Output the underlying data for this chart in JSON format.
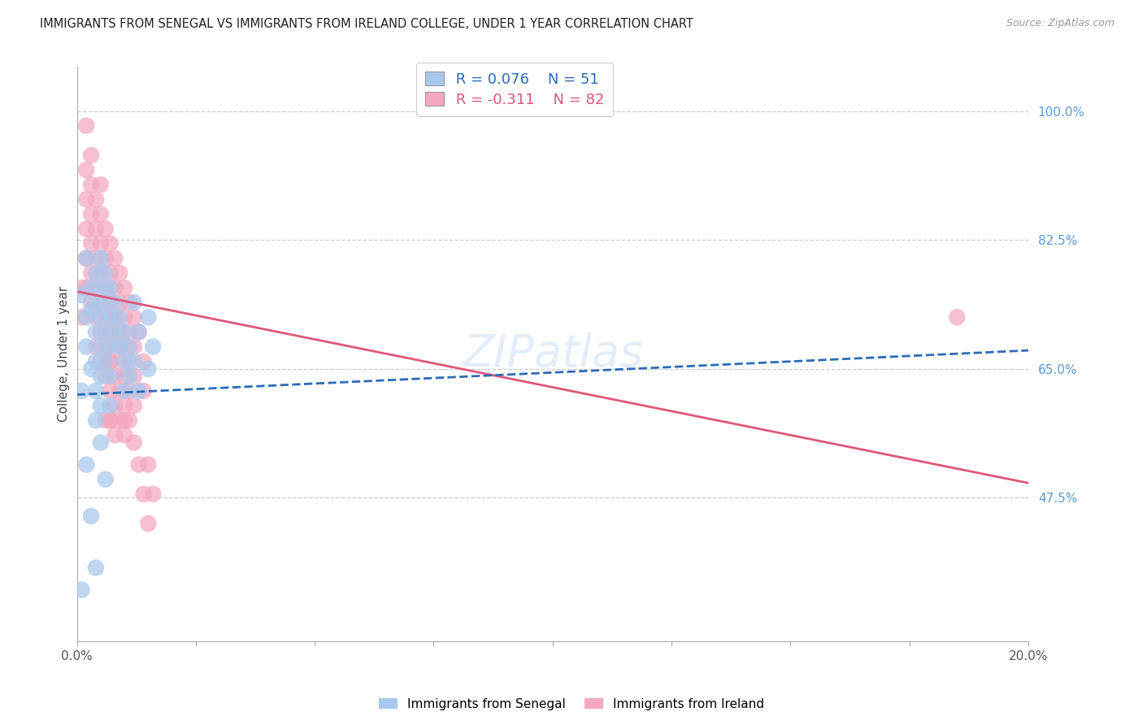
{
  "title": "IMMIGRANTS FROM SENEGAL VS IMMIGRANTS FROM IRELAND COLLEGE, UNDER 1 YEAR CORRELATION CHART",
  "source": "Source: ZipAtlas.com",
  "ylabel": "College, Under 1 year",
  "xlim": [
    0.0,
    0.2
  ],
  "ylim": [
    0.28,
    1.06
  ],
  "xticks": [
    0.0,
    0.025,
    0.05,
    0.075,
    0.1,
    0.125,
    0.15,
    0.175,
    0.2
  ],
  "yticks_right": [
    1.0,
    0.825,
    0.65,
    0.475
  ],
  "ytick_labels_right": [
    "100.0%",
    "82.5%",
    "65.0%",
    "47.5%"
  ],
  "grid_color": "#cccccc",
  "background_color": "#ffffff",
  "senegal_color": "#a8c8ed",
  "ireland_color": "#f5a8be",
  "senegal_line_color": "#2b6cb8",
  "ireland_line_color": "#e05878",
  "right_tick_color": "#5b9bd5",
  "senegal_R": "0.076",
  "senegal_N": "51",
  "ireland_R": "-0.311",
  "ireland_N": "82",
  "legend_label_senegal": "Immigrants from Senegal",
  "legend_label_ireland": "Immigrants from Ireland",
  "senegal_trend_x": [
    0.0,
    0.2
  ],
  "senegal_trend_y": [
    0.615,
    0.675
  ],
  "ireland_trend_x": [
    0.0,
    0.2
  ],
  "ireland_trend_y": [
    0.755,
    0.495
  ],
  "senegal_points_x": [
    0.001,
    0.002,
    0.002,
    0.003,
    0.003,
    0.003,
    0.004,
    0.004,
    0.004,
    0.004,
    0.005,
    0.005,
    0.005,
    0.005,
    0.005,
    0.006,
    0.006,
    0.006,
    0.007,
    0.007,
    0.007,
    0.007,
    0.008,
    0.008,
    0.009,
    0.009,
    0.01,
    0.01,
    0.01,
    0.011,
    0.011,
    0.012,
    0.012,
    0.013,
    0.013,
    0.015,
    0.015,
    0.016,
    0.002,
    0.003,
    0.004,
    0.001,
    0.002,
    0.005,
    0.001,
    0.006,
    0.004,
    0.006,
    0.005,
    0.007,
    0.004
  ],
  "senegal_points_y": [
    0.62,
    0.68,
    0.72,
    0.76,
    0.73,
    0.65,
    0.78,
    0.74,
    0.7,
    0.66,
    0.8,
    0.76,
    0.72,
    0.68,
    0.64,
    0.78,
    0.74,
    0.7,
    0.76,
    0.72,
    0.68,
    0.64,
    0.74,
    0.7,
    0.72,
    0.68,
    0.7,
    0.66,
    0.62,
    0.68,
    0.64,
    0.74,
    0.66,
    0.7,
    0.62,
    0.72,
    0.65,
    0.68,
    0.52,
    0.45,
    0.38,
    0.75,
    0.8,
    0.55,
    0.35,
    0.5,
    0.62,
    0.66,
    0.6,
    0.6,
    0.58
  ],
  "ireland_points_x": [
    0.001,
    0.001,
    0.002,
    0.002,
    0.002,
    0.002,
    0.002,
    0.003,
    0.003,
    0.003,
    0.003,
    0.003,
    0.004,
    0.004,
    0.004,
    0.004,
    0.004,
    0.004,
    0.005,
    0.005,
    0.005,
    0.005,
    0.005,
    0.006,
    0.006,
    0.006,
    0.006,
    0.006,
    0.007,
    0.007,
    0.007,
    0.007,
    0.007,
    0.007,
    0.008,
    0.008,
    0.008,
    0.008,
    0.008,
    0.009,
    0.009,
    0.009,
    0.009,
    0.01,
    0.01,
    0.01,
    0.01,
    0.011,
    0.011,
    0.011,
    0.012,
    0.012,
    0.012,
    0.012,
    0.013,
    0.013,
    0.014,
    0.014,
    0.014,
    0.015,
    0.015,
    0.016,
    0.002,
    0.003,
    0.005,
    0.006,
    0.007,
    0.008,
    0.009,
    0.01,
    0.005,
    0.007,
    0.006,
    0.008,
    0.009,
    0.01,
    0.011,
    0.012,
    0.007,
    0.185,
    0.01,
    0.011
  ],
  "ireland_points_y": [
    0.76,
    0.72,
    0.92,
    0.88,
    0.84,
    0.8,
    0.76,
    0.9,
    0.86,
    0.82,
    0.78,
    0.74,
    0.88,
    0.84,
    0.8,
    0.76,
    0.72,
    0.68,
    0.86,
    0.82,
    0.78,
    0.74,
    0.7,
    0.84,
    0.8,
    0.76,
    0.72,
    0.68,
    0.82,
    0.78,
    0.74,
    0.7,
    0.66,
    0.62,
    0.8,
    0.76,
    0.72,
    0.68,
    0.64,
    0.78,
    0.74,
    0.7,
    0.66,
    0.76,
    0.72,
    0.68,
    0.64,
    0.74,
    0.7,
    0.66,
    0.72,
    0.68,
    0.64,
    0.55,
    0.7,
    0.52,
    0.66,
    0.62,
    0.48,
    0.52,
    0.44,
    0.48,
    0.98,
    0.94,
    0.9,
    0.58,
    0.58,
    0.56,
    0.58,
    0.58,
    0.66,
    0.66,
    0.64,
    0.6,
    0.62,
    0.6,
    0.62,
    0.6,
    0.58,
    0.72,
    0.56,
    0.58
  ]
}
